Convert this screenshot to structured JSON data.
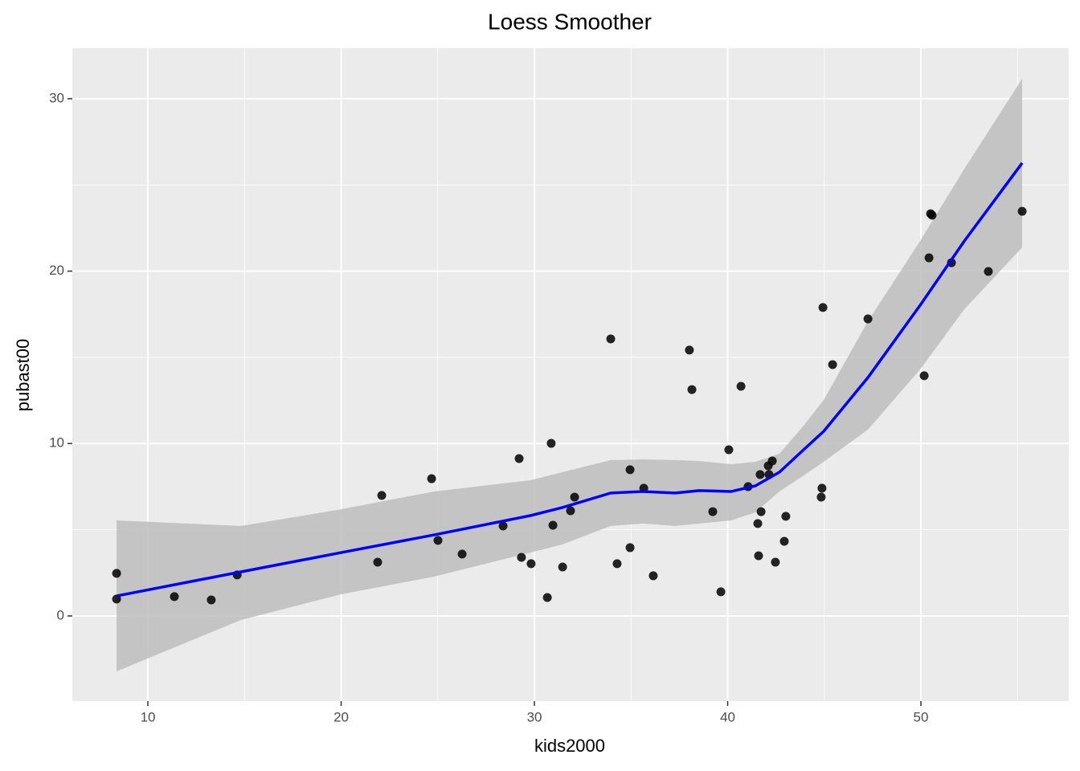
{
  "chart_data": {
    "type": "scatter",
    "title": "Loess Smoother",
    "x_label": "kids2000",
    "y_label": "pubast00",
    "xlim": [
      6.09,
      57.65
    ],
    "ylim": [
      -4.94,
      32.93
    ],
    "xticks": [
      10,
      20,
      30,
      40,
      50
    ],
    "yticks": [
      0,
      10,
      20,
      30
    ],
    "x_minor_grid": [
      15,
      25,
      35,
      45,
      55
    ],
    "y_minor_grid": [
      5,
      15,
      25
    ],
    "grid": true,
    "background": "#ebebeb",
    "points": {
      "color": "#000000",
      "x": [
        8.38,
        8.38,
        11.37,
        13.28,
        14.62,
        21.89,
        22.1,
        24.68,
        25.01,
        26.26,
        28.38,
        29.21,
        29.33,
        29.83,
        30.67,
        30.87,
        30.96,
        31.46,
        31.87,
        32.08,
        33.95,
        34.28,
        34.95,
        34.95,
        35.66,
        36.15,
        38.02,
        38.15,
        39.23,
        39.65,
        40.06,
        40.69,
        41.06,
        41.56,
        41.6,
        41.68,
        41.73,
        42.1,
        42.14,
        42.31,
        42.47,
        42.93,
        43.01,
        44.84,
        44.88,
        44.93,
        45.43,
        47.26,
        50.17,
        50.42,
        50.5,
        50.58,
        51.58,
        53.49,
        55.24
      ],
      "y": [
        2.47,
        0.98,
        1.12,
        0.93,
        2.38,
        3.12,
        6.99,
        7.96,
        4.38,
        3.59,
        5.22,
        9.13,
        3.4,
        3.03,
        1.07,
        10.01,
        5.26,
        2.84,
        6.1,
        6.89,
        16.07,
        3.03,
        8.48,
        3.96,
        7.41,
        2.33,
        15.42,
        13.13,
        6.05,
        1.4,
        9.64,
        13.32,
        7.5,
        5.36,
        3.49,
        8.2,
        6.05,
        8.71,
        8.2,
        8.99,
        3.12,
        4.33,
        5.78,
        6.89,
        7.41,
        17.89,
        14.58,
        17.23,
        13.93,
        20.77,
        23.33,
        23.24,
        20.49,
        19.98,
        23.47
      ]
    },
    "smooth": {
      "color": "#0000ff",
      "band_color": "#bdbdbd",
      "x": [
        8.38,
        14.82,
        20.02,
        24.8,
        29.79,
        31.45,
        33.95,
        35.61,
        37.28,
        38.52,
        40.19,
        41.44,
        42.68,
        43.93,
        44.97,
        47.26,
        49.96,
        52.25,
        55.24
      ],
      "y": [
        1.16,
        2.56,
        3.68,
        4.7,
        5.82,
        6.29,
        7.13,
        7.22,
        7.13,
        7.27,
        7.22,
        7.55,
        8.34,
        9.64,
        10.71,
        13.83,
        18.02,
        21.75,
        26.27
      ],
      "upper": [
        5.54,
        5.22,
        6.19,
        7.22,
        7.87,
        8.34,
        9.04,
        9.08,
        9.04,
        8.99,
        8.8,
        8.94,
        9.41,
        11.04,
        12.53,
        17.09,
        21.75,
        25.94,
        31.16
      ],
      "lower": [
        -3.21,
        -0.23,
        1.26,
        2.28,
        3.68,
        4.15,
        5.22,
        5.36,
        5.22,
        5.36,
        5.54,
        6.01,
        7.22,
        8.15,
        8.94,
        10.81,
        14.3,
        17.79,
        21.38
      ]
    }
  }
}
